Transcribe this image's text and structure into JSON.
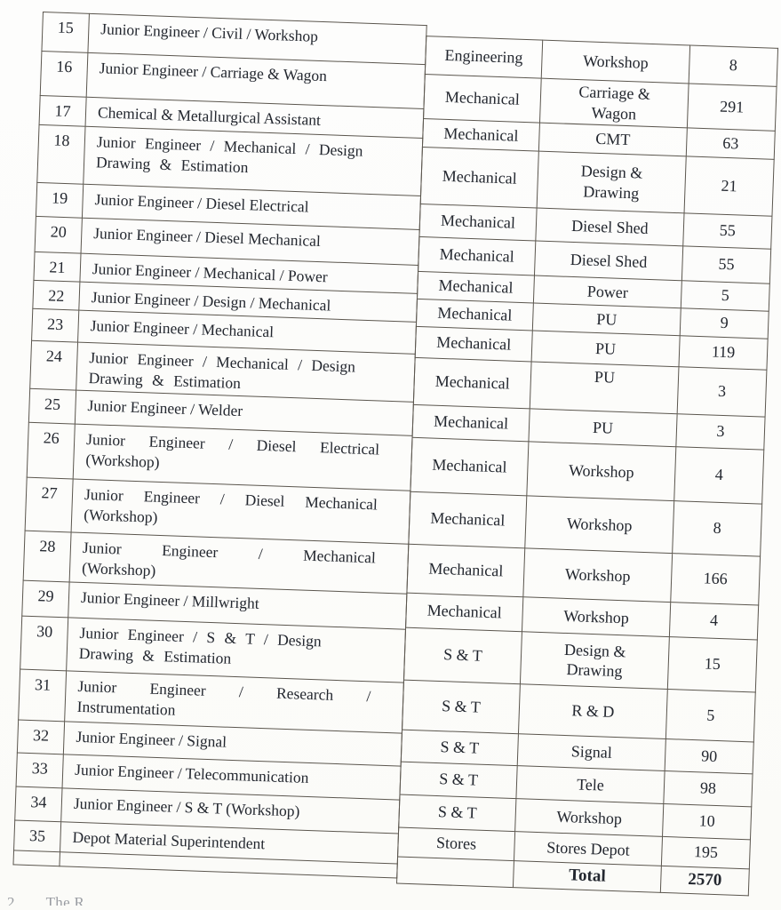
{
  "colors": {
    "ink": "#23272f",
    "border": "#5b564e",
    "paper": "#fcfcfa"
  },
  "table": {
    "rows": [
      {
        "no": "15",
        "post": "Junior Engineer / Civil / Workshop",
        "department": "Engineering",
        "unit": "Workshop",
        "count": "8"
      },
      {
        "no": "16",
        "post": "Junior Engineer / Carriage & Wagon",
        "department": "Mechanical",
        "unit": "Carriage &\nWagon",
        "count": "291"
      },
      {
        "no": "17",
        "post": "Chemical & Metallurgical Assistant",
        "department": "Mechanical",
        "unit": "CMT",
        "count": "63"
      },
      {
        "no": "18",
        "post": "Junior Engineer / Mechanical / Design\nDrawing & Estimation",
        "department": "Mechanical",
        "unit": "Design &\nDrawing",
        "count": "21"
      },
      {
        "no": "19",
        "post": "Junior Engineer / Diesel Electrical",
        "department": "Mechanical",
        "unit": "Diesel Shed",
        "count": "55"
      },
      {
        "no": "20",
        "post": "Junior Engineer / Diesel Mechanical",
        "department": "Mechanical",
        "unit": "Diesel Shed",
        "count": "55"
      },
      {
        "no": "21",
        "post": "Junior Engineer / Mechanical / Power",
        "department": "Mechanical",
        "unit": "Power",
        "count": "5"
      },
      {
        "no": "22",
        "post": "Junior Engineer / Design / Mechanical",
        "department": "Mechanical",
        "unit": "PU",
        "count": "9"
      },
      {
        "no": "23",
        "post": "Junior Engineer / Mechanical",
        "department": "Mechanical",
        "unit": "PU",
        "count": "119"
      },
      {
        "no": "24",
        "post": "Junior Engineer / Mechanical / Design\nDrawing & Estimation",
        "department": "Mechanical",
        "unit": "PU",
        "count": "3"
      },
      {
        "no": "25",
        "post": "Junior Engineer / Welder",
        "department": "Mechanical",
        "unit": "PU",
        "count": "3"
      },
      {
        "no": "26",
        "post": "Junior Engineer / Diesel Electrical\n(Workshop)",
        "department": "Mechanical",
        "unit": "Workshop",
        "count": "4"
      },
      {
        "no": "27",
        "post": "Junior Engineer / Diesel Mechanical\n(Workshop)",
        "department": "Mechanical",
        "unit": "Workshop",
        "count": "8"
      },
      {
        "no": "28",
        "post": "Junior Engineer / Mechanical\n(Workshop)",
        "department": "Mechanical",
        "unit": "Workshop",
        "count": "166"
      },
      {
        "no": "29",
        "post": "Junior Engineer / Millwright",
        "department": "Mechanical",
        "unit": "Workshop",
        "count": "4"
      },
      {
        "no": "30",
        "post": "Junior Engineer / S & T / Design\nDrawing & Estimation",
        "department": "S & T",
        "unit": "Design &\nDrawing",
        "count": "15"
      },
      {
        "no": "31",
        "post": "Junior Engineer / Research /\nInstrumentation",
        "department": "S & T",
        "unit": "R & D",
        "count": "5"
      },
      {
        "no": "32",
        "post": "Junior Engineer / Signal",
        "department": "S & T",
        "unit": "Signal",
        "count": "90"
      },
      {
        "no": "33",
        "post": "Junior Engineer / Telecommunication",
        "department": "S & T",
        "unit": "Tele",
        "count": "98"
      },
      {
        "no": "34",
        "post": "Junior Engineer / S & T (Workshop)",
        "department": "S & T",
        "unit": "Workshop",
        "count": "10"
      },
      {
        "no": "35",
        "post": "Depot Material Superintendent",
        "department": "Stores",
        "unit": "Stores Depot",
        "count": "195"
      }
    ],
    "total": {
      "label": "Total",
      "value": "2570"
    }
  },
  "footnote": {
    "number": "2.",
    "text": "The R"
  }
}
